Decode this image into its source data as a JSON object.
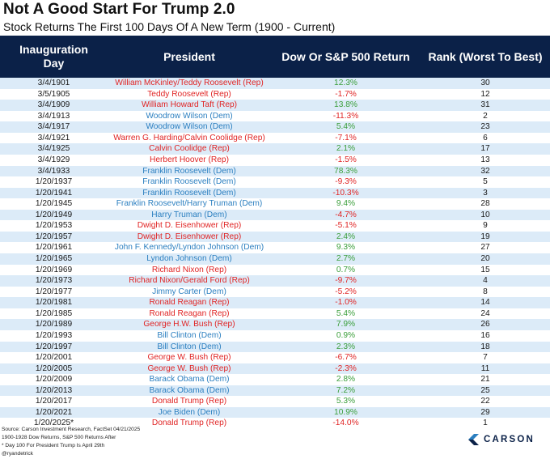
{
  "title": "Not A Good Start For Trump 2.0",
  "subtitle": "Stock Returns The First 100 Days Of A New Term (1900 - Current)",
  "headers": {
    "date": "Inauguration Day",
    "president": "President",
    "return": "Dow Or S&P 500 Return",
    "rank": "Rank (Worst To Best)"
  },
  "colors": {
    "header_bg": "#0b2148",
    "row_stripe": "#dcebf8",
    "republican": "#e02424",
    "democrat": "#2b7fc0",
    "positive": "#3a9e3a",
    "negative": "#e02424"
  },
  "rows": [
    {
      "date": "3/4/1901",
      "president": "William McKinley/Teddy Roosevelt (Rep)",
      "party": "rep",
      "ret": "12.3%",
      "sign": "pos",
      "rank": "30"
    },
    {
      "date": "3/5/1905",
      "president": "Teddy Roosevelt (Rep)",
      "party": "rep",
      "ret": "-1.7%",
      "sign": "neg",
      "rank": "12"
    },
    {
      "date": "3/4/1909",
      "president": "William Howard Taft (Rep)",
      "party": "rep",
      "ret": "13.8%",
      "sign": "pos",
      "rank": "31"
    },
    {
      "date": "3/4/1913",
      "president": "Woodrow Wilson (Dem)",
      "party": "dem",
      "ret": "-11.3%",
      "sign": "neg",
      "rank": "2"
    },
    {
      "date": "3/4/1917",
      "president": "Woodrow Wilson (Dem)",
      "party": "dem",
      "ret": "5.4%",
      "sign": "pos",
      "rank": "23"
    },
    {
      "date": "3/4/1921",
      "president": "Warren G. Harding/Calvin Coolidge (Rep)",
      "party": "rep",
      "ret": "-7.1%",
      "sign": "neg",
      "rank": "6"
    },
    {
      "date": "3/4/1925",
      "president": "Calvin Coolidge (Rep)",
      "party": "rep",
      "ret": "2.1%",
      "sign": "pos",
      "rank": "17"
    },
    {
      "date": "3/4/1929",
      "president": "Herbert Hoover (Rep)",
      "party": "rep",
      "ret": "-1.5%",
      "sign": "neg",
      "rank": "13"
    },
    {
      "date": "3/4/1933",
      "president": "Franklin Roosevelt (Dem)",
      "party": "dem",
      "ret": "78.3%",
      "sign": "pos",
      "rank": "32"
    },
    {
      "date": "1/20/1937",
      "president": "Franklin Roosevelt (Dem)",
      "party": "dem",
      "ret": "-9.3%",
      "sign": "neg",
      "rank": "5"
    },
    {
      "date": "1/20/1941",
      "president": "Franklin Roosevelt (Dem)",
      "party": "dem",
      "ret": "-10.3%",
      "sign": "neg",
      "rank": "3"
    },
    {
      "date": "1/20/1945",
      "president": "Franklin Roosevelt/Harry Truman (Dem)",
      "party": "dem",
      "ret": "9.4%",
      "sign": "pos",
      "rank": "28"
    },
    {
      "date": "1/20/1949",
      "president": "Harry Truman (Dem)",
      "party": "dem",
      "ret": "-4.7%",
      "sign": "neg",
      "rank": "10"
    },
    {
      "date": "1/20/1953",
      "president": "Dwight D. Eisenhower (Rep)",
      "party": "rep",
      "ret": "-5.1%",
      "sign": "neg",
      "rank": "9"
    },
    {
      "date": "1/20/1957",
      "president": "Dwight D. Eisenhower (Rep)",
      "party": "rep",
      "ret": "2.4%",
      "sign": "pos",
      "rank": "19"
    },
    {
      "date": "1/20/1961",
      "president": "John F. Kennedy/Lyndon Johnson (Dem)",
      "party": "dem",
      "ret": "9.3%",
      "sign": "pos",
      "rank": "27"
    },
    {
      "date": "1/20/1965",
      "president": "Lyndon Johnson (Dem)",
      "party": "dem",
      "ret": "2.7%",
      "sign": "pos",
      "rank": "20"
    },
    {
      "date": "1/20/1969",
      "president": "Richard Nixon (Rep)",
      "party": "rep",
      "ret": "0.7%",
      "sign": "pos",
      "rank": "15"
    },
    {
      "date": "1/20/1973",
      "president": "Richard Nixon/Gerald Ford (Rep)",
      "party": "rep",
      "ret": "-9.7%",
      "sign": "neg",
      "rank": "4"
    },
    {
      "date": "1/20/1977",
      "president": "Jimmy Carter (Dem)",
      "party": "dem",
      "ret": "-5.2%",
      "sign": "neg",
      "rank": "8"
    },
    {
      "date": "1/20/1981",
      "president": "Ronald Reagan (Rep)",
      "party": "rep",
      "ret": "-1.0%",
      "sign": "neg",
      "rank": "14"
    },
    {
      "date": "1/20/1985",
      "president": "Ronald Reagan (Rep)",
      "party": "rep",
      "ret": "5.4%",
      "sign": "pos",
      "rank": "24"
    },
    {
      "date": "1/20/1989",
      "president": "George H.W. Bush (Rep)",
      "party": "rep",
      "ret": "7.9%",
      "sign": "pos",
      "rank": "26"
    },
    {
      "date": "1/20/1993",
      "president": "Bill Clinton (Dem)",
      "party": "dem",
      "ret": "0.9%",
      "sign": "pos",
      "rank": "16"
    },
    {
      "date": "1/20/1997",
      "president": "Bill Clinton (Dem)",
      "party": "dem",
      "ret": "2.3%",
      "sign": "pos",
      "rank": "18"
    },
    {
      "date": "1/20/2001",
      "president": "George W. Bush (Rep)",
      "party": "rep",
      "ret": "-6.7%",
      "sign": "neg",
      "rank": "7"
    },
    {
      "date": "1/20/2005",
      "president": "George W. Bush (Rep)",
      "party": "rep",
      "ret": "-2.3%",
      "sign": "neg",
      "rank": "11"
    },
    {
      "date": "1/20/2009",
      "president": "Barack Obama (Dem)",
      "party": "dem",
      "ret": "2.8%",
      "sign": "pos",
      "rank": "21"
    },
    {
      "date": "1/20/2013",
      "president": "Barack Obama (Dem)",
      "party": "dem",
      "ret": "7.2%",
      "sign": "pos",
      "rank": "25"
    },
    {
      "date": "1/20/2017",
      "president": "Donald Trump (Rep)",
      "party": "rep",
      "ret": "5.3%",
      "sign": "pos",
      "rank": "22"
    },
    {
      "date": "1/20/2021",
      "president": "Joe Biden (Dem)",
      "party": "dem",
      "ret": "10.9%",
      "sign": "pos",
      "rank": "29"
    },
    {
      "date": "1/20/2025*",
      "president": "Donald Trump (Rep)",
      "party": "rep",
      "ret": "-14.0%",
      "sign": "neg",
      "rank": "1"
    }
  ],
  "footer": {
    "source": "Source: Carson Investment Research, FactSet 04/21/2025",
    "note1": "1900-1928 Dow Returns, S&P 500 Returns After",
    "note2": "* Day 100 For President Trump Is April 29th",
    "handle": "@ryandetrick"
  },
  "logo": {
    "icon": "carson-chevron-icon",
    "text": "CARSON"
  }
}
